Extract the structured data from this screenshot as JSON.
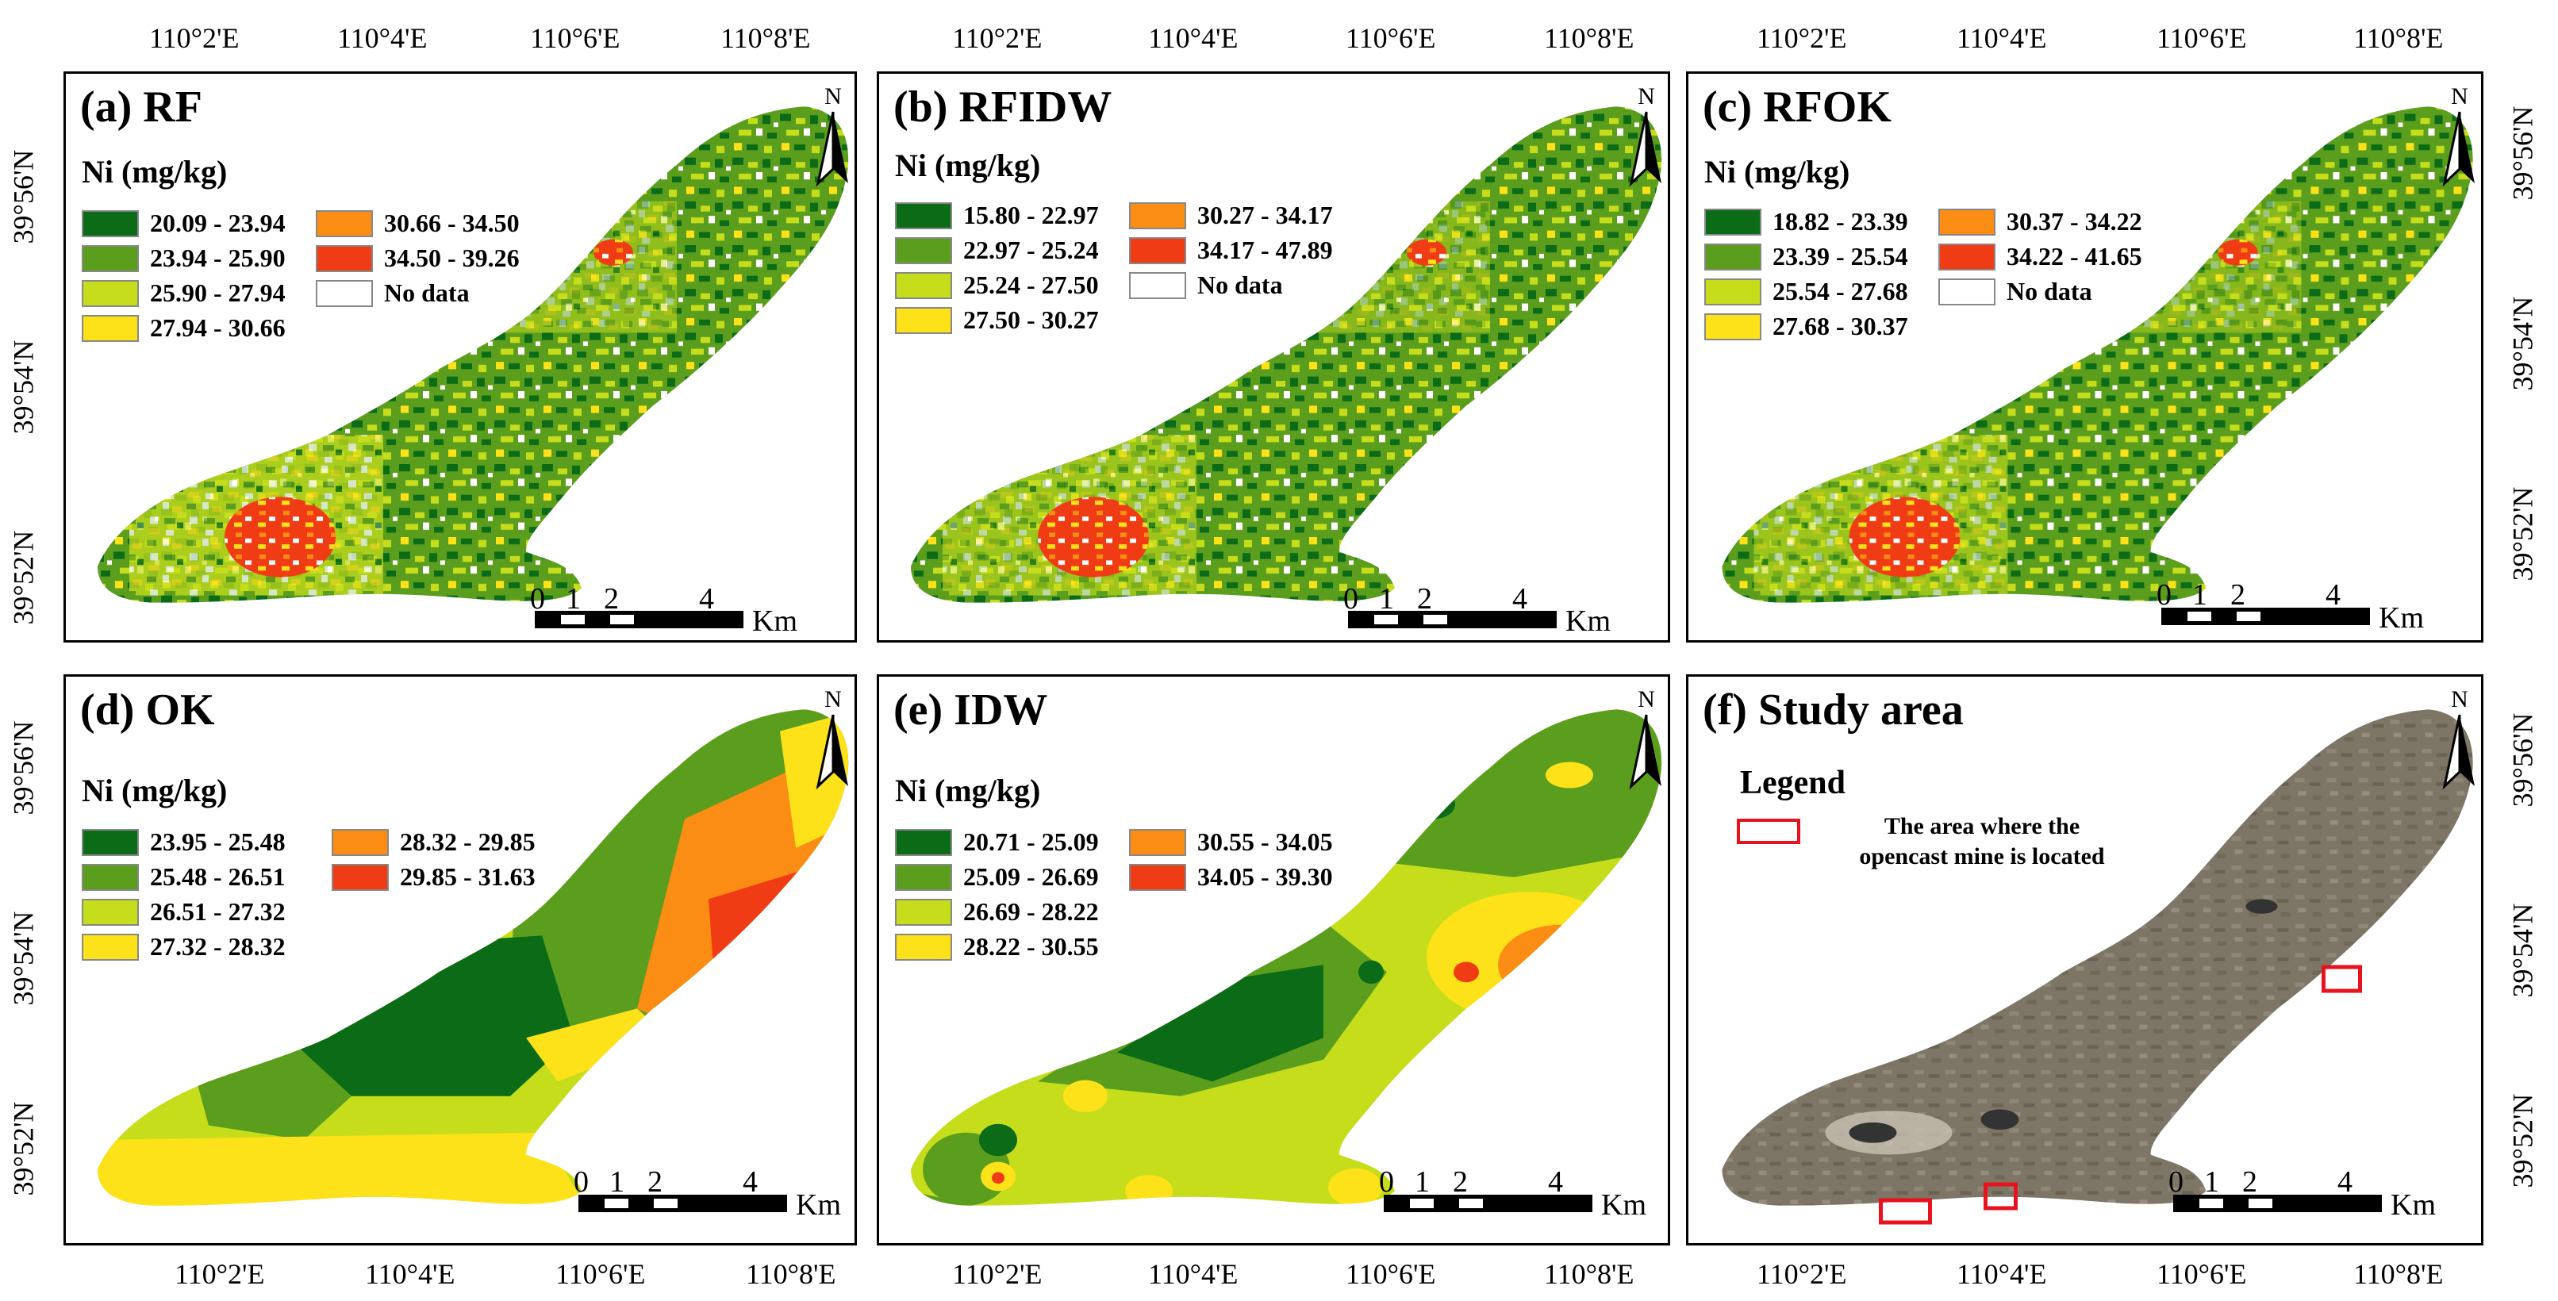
{
  "figure": {
    "top_lon_labels": [
      [
        "110°2'E",
        "110°4'E",
        "110°6'E",
        "110°8'E"
      ],
      [
        "110°2'E",
        "110°4'E",
        "110°6'E",
        "110°8'E"
      ],
      [
        "110°2'E",
        "110°4'E",
        "110°6'E",
        "110°8'E"
      ]
    ],
    "bottom_lon_labels": [
      [
        "110°2'E",
        "110°4'E",
        "110°6'E",
        "110°8'E"
      ],
      [
        "110°2'E",
        "110°4'E",
        "110°6'E",
        "110°8'E"
      ],
      [
        "110°2'E",
        "110°4'E",
        "110°6'E",
        "110°8'E"
      ]
    ],
    "left_lat_top": [
      "39°56'N",
      "39°54'N",
      "39°52'N"
    ],
    "left_lat_bottom": [
      "39°56'N",
      "39°54'N",
      "39°52'N"
    ],
    "right_lat_top": [
      "39°56'N",
      "39°54'N",
      "39°52'N"
    ],
    "right_lat_bottom": [
      "39°56'N",
      "39°54'N",
      "39°52'N"
    ]
  },
  "colors": {
    "dark_green": "#0b6b17",
    "mid_green": "#5b9e1e",
    "yellow_green": "#c6dd1c",
    "yellow": "#fde21a",
    "orange": "#fb8c14",
    "red": "#f03c14",
    "nodata": "#ffffff",
    "rect_red": "#e8121e",
    "satellite": "#7d7566"
  },
  "panels": {
    "a": {
      "title": "(a) RF",
      "legend_title": "Ni (mg/kg)",
      "items": [
        "20.09 - 23.94",
        "23.94 - 25.90",
        "25.90 - 27.94",
        "27.94 - 30.66",
        "30.66 - 34.50",
        "34.50 - 39.26",
        "No data"
      ]
    },
    "b": {
      "title": "(b) RFIDW",
      "legend_title": "Ni (mg/kg)",
      "items": [
        "15.80 - 22.97",
        "22.97 - 25.24",
        "25.24 - 27.50",
        "27.50 - 30.27",
        "30.27 - 34.17",
        "34.17 - 47.89",
        "No data"
      ]
    },
    "c": {
      "title": "(c) RFOK",
      "legend_title": "Ni (mg/kg)",
      "items": [
        "18.82 - 23.39",
        "23.39 - 25.54",
        "25.54 - 27.68",
        "27.68 - 30.37",
        "30.37 - 34.22",
        "34.22 - 41.65",
        "No data"
      ]
    },
    "d": {
      "title": "(d) OK",
      "legend_title": "Ni (mg/kg)",
      "items": [
        "23.95 - 25.48",
        "25.48 - 26.51",
        "26.51 - 27.32",
        "27.32 - 28.32",
        "28.32 - 29.85",
        "29.85 - 31.63"
      ]
    },
    "e": {
      "title": "(e) IDW",
      "legend_title": "Ni (mg/kg)",
      "items": [
        "20.71 - 25.09",
        "25.09 - 26.69",
        "26.69 - 28.22",
        "28.22 - 30.55",
        "30.55 - 34.05",
        "34.05 - 39.30"
      ]
    },
    "f": {
      "title": "(f) Study area",
      "legend_title": "Legend",
      "legend_text_1": "The area where the",
      "legend_text_2": "opencast mine is located"
    }
  },
  "scale": {
    "ticks": [
      "0",
      "1",
      "2",
      "4"
    ],
    "unit": "Km"
  },
  "north_label": "N"
}
